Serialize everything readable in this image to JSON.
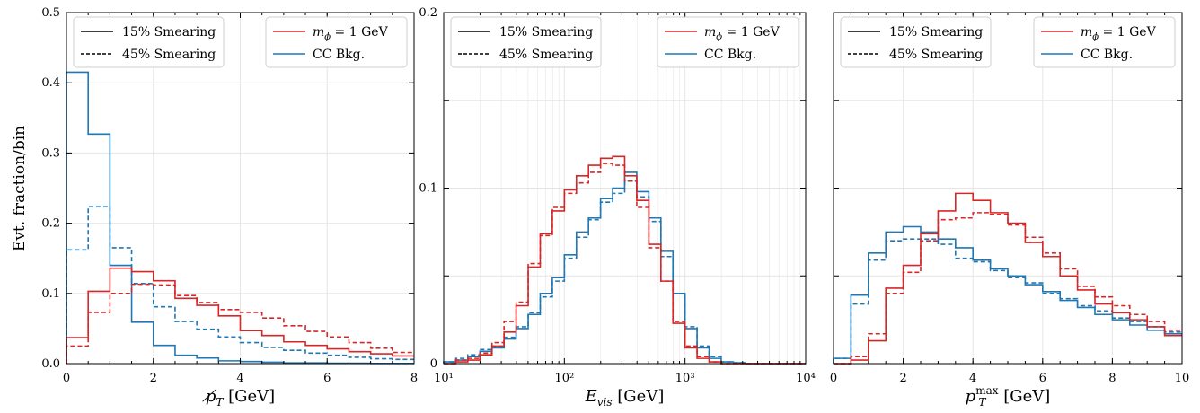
{
  "colors": {
    "signal": "#d62728",
    "background": "#1f77b4",
    "grid": "#e6e6e6",
    "axis": "#000000"
  },
  "ylabel": "Evt. fraction/bin",
  "legend": {
    "smear_15": "15% Smearing",
    "smear_45": "45% Smearing",
    "signal_prefix": "m",
    "signal_sub": "ϕ",
    "signal_suffix": " = 1 GeV",
    "background": "CC Bkg."
  },
  "chart_data": [
    {
      "type": "line",
      "step": true,
      "xlabel_main": "p̸",
      "xlabel_sub": "T",
      "xlabel_sup": "",
      "xlabel_unit": " [GeV]",
      "xscale": "linear",
      "xlim": [
        0,
        8
      ],
      "ylim": [
        0,
        0.5
      ],
      "xticks": [
        0,
        2,
        4,
        6,
        8
      ],
      "xtick_labels": [
        "0",
        "2",
        "4",
        "6",
        "8"
      ],
      "yticks": [
        0,
        0.1,
        0.2,
        0.3,
        0.4,
        0.5
      ],
      "ytick_labels": [
        "0.0",
        "0.1",
        "0.2",
        "0.3",
        "0.4",
        "0.5"
      ],
      "show_yticklabels": true,
      "grid": true,
      "legend_placement": "top",
      "bin_edges": [
        0,
        0.5,
        1,
        1.5,
        2,
        2.5,
        3,
        3.5,
        4,
        4.5,
        5,
        5.5,
        6,
        6.5,
        7,
        7.5,
        8
      ],
      "series": [
        {
          "name": "CC Bkg. 15% Smearing",
          "color": "background",
          "dash": false,
          "values": [
            0.415,
            0.327,
            0.14,
            0.059,
            0.026,
            0.012,
            0.008,
            0.004,
            0.003,
            0.002,
            0.001,
            0.001,
            0.0005,
            0.0005,
            0.0003,
            0.0003
          ]
        },
        {
          "name": "CC Bkg. 45% Smearing",
          "color": "background",
          "dash": true,
          "values": [
            0.162,
            0.224,
            0.165,
            0.114,
            0.081,
            0.06,
            0.049,
            0.038,
            0.03,
            0.023,
            0.019,
            0.015,
            0.012,
            0.009,
            0.007,
            0.006
          ]
        },
        {
          "name": "m_phi = 1 GeV 15% Smearing",
          "color": "signal",
          "dash": false,
          "values": [
            0.037,
            0.103,
            0.136,
            0.131,
            0.118,
            0.093,
            0.083,
            0.068,
            0.047,
            0.04,
            0.031,
            0.026,
            0.021,
            0.017,
            0.014,
            0.011
          ]
        },
        {
          "name": "m_phi = 1 GeV 45% Smearing",
          "color": "signal",
          "dash": true,
          "values": [
            0.025,
            0.073,
            0.1,
            0.113,
            0.112,
            0.097,
            0.087,
            0.077,
            0.073,
            0.065,
            0.054,
            0.046,
            0.038,
            0.03,
            0.022,
            0.016
          ]
        }
      ]
    },
    {
      "type": "line",
      "step": true,
      "xlabel_main": "E",
      "xlabel_sub": "vis",
      "xlabel_sup": "",
      "xlabel_unit": " [GeV]",
      "xscale": "log",
      "xlim": [
        10,
        10000
      ],
      "ylim": [
        0,
        0.2
      ],
      "xticks": [
        10,
        100,
        1000,
        10000
      ],
      "xtick_labels": [
        "10¹",
        "10²",
        "10³",
        "10⁴"
      ],
      "yticks": [
        0,
        0.1,
        0.2
      ],
      "ytick_labels": [
        "0",
        "0.1",
        "0.2"
      ],
      "extra_yticks": [
        0.05,
        0.15
      ],
      "show_yticklabels": true,
      "grid": true,
      "legend_placement": "top",
      "bin_edges": [
        10,
        12.59,
        15.85,
        19.95,
        25.12,
        31.62,
        39.81,
        50.12,
        63.1,
        79.43,
        100,
        125.9,
        158.5,
        199.5,
        251.2,
        316.2,
        398.1,
        501.2,
        631,
        794.3,
        1000,
        1259,
        1585,
        1995,
        2512,
        3162,
        3981,
        5012,
        6310,
        7943,
        10000
      ],
      "series": [
        {
          "name": "CC Bkg. 15% Smearing",
          "color": "background",
          "dash": false,
          "values": [
            0.001,
            0.002,
            0.004,
            0.007,
            0.009,
            0.014,
            0.02,
            0.028,
            0.04,
            0.049,
            0.062,
            0.075,
            0.083,
            0.094,
            0.1,
            0.109,
            0.098,
            0.083,
            0.064,
            0.04,
            0.02,
            0.009,
            0.003,
            0.001,
            0.0005,
            0,
            0,
            0,
            0,
            0
          ]
        },
        {
          "name": "CC Bkg. 45% Smearing",
          "color": "background",
          "dash": true,
          "values": [
            0.001,
            0.003,
            0.005,
            0.008,
            0.01,
            0.015,
            0.021,
            0.029,
            0.038,
            0.047,
            0.06,
            0.072,
            0.082,
            0.092,
            0.097,
            0.104,
            0.095,
            0.081,
            0.061,
            0.04,
            0.021,
            0.01,
            0.004,
            0.001,
            0.0005,
            0,
            0,
            0,
            0,
            0
          ]
        },
        {
          "name": "m_phi = 1 GeV 15% Smearing",
          "color": "signal",
          "dash": false,
          "values": [
            0,
            0.001,
            0.002,
            0.005,
            0.01,
            0.018,
            0.033,
            0.055,
            0.074,
            0.087,
            0.099,
            0.107,
            0.113,
            0.117,
            0.118,
            0.107,
            0.093,
            0.068,
            0.047,
            0.023,
            0.009,
            0.003,
            0.001,
            0,
            0,
            0,
            0,
            0,
            0,
            0
          ]
        },
        {
          "name": "m_phi = 1 GeV 45% Smearing",
          "color": "signal",
          "dash": true,
          "values": [
            0,
            0.002,
            0.003,
            0.006,
            0.012,
            0.024,
            0.035,
            0.057,
            0.073,
            0.089,
            0.097,
            0.103,
            0.109,
            0.114,
            0.113,
            0.104,
            0.089,
            0.066,
            0.047,
            0.024,
            0.01,
            0.004,
            0.001,
            0,
            0,
            0,
            0,
            0,
            0,
            0
          ]
        }
      ]
    },
    {
      "type": "line",
      "step": true,
      "xlabel_main": "p",
      "xlabel_sub": "T",
      "xlabel_sup": "max",
      "xlabel_unit": " [GeV]",
      "xscale": "linear",
      "xlim": [
        0,
        10
      ],
      "ylim": [
        0,
        0.2
      ],
      "xticks": [
        0,
        2,
        4,
        6,
        8,
        10
      ],
      "xtick_labels": [
        "0",
        "2",
        "4",
        "6",
        "8",
        "10"
      ],
      "yticks": [
        0,
        0.05,
        0.1,
        0.15,
        0.2
      ],
      "ytick_labels": [
        "",
        "",
        "",
        "",
        ""
      ],
      "show_yticklabels": false,
      "grid": true,
      "legend_placement": "top",
      "bin_edges": [
        0,
        0.5,
        1,
        1.5,
        2,
        2.5,
        3,
        3.5,
        4,
        4.5,
        5,
        5.5,
        6,
        6.5,
        7,
        7.5,
        8,
        8.5,
        9,
        9.5,
        10
      ],
      "series": [
        {
          "name": "CC Bkg. 15% Smearing",
          "color": "background",
          "dash": false,
          "values": [
            0.003,
            0.039,
            0.063,
            0.075,
            0.078,
            0.075,
            0.071,
            0.066,
            0.059,
            0.054,
            0.05,
            0.045,
            0.041,
            0.036,
            0.032,
            0.028,
            0.025,
            0.022,
            0.019,
            0.017
          ]
        },
        {
          "name": "CC Bkg. 45% Smearing",
          "color": "background",
          "dash": true,
          "values": [
            0.003,
            0.034,
            0.059,
            0.07,
            0.071,
            0.071,
            0.068,
            0.06,
            0.058,
            0.053,
            0.049,
            0.046,
            0.04,
            0.037,
            0.033,
            0.03,
            0.026,
            0.024,
            0.021,
            0.018
          ]
        },
        {
          "name": "m_phi = 1 GeV 15% Smearing",
          "color": "signal",
          "dash": false,
          "values": [
            0,
            0.002,
            0.013,
            0.043,
            0.056,
            0.074,
            0.087,
            0.097,
            0.093,
            0.086,
            0.08,
            0.069,
            0.061,
            0.05,
            0.042,
            0.034,
            0.029,
            0.025,
            0.021,
            0.016
          ]
        },
        {
          "name": "m_phi = 1 GeV 45% Smearing",
          "color": "signal",
          "dash": true,
          "values": [
            0,
            0.004,
            0.017,
            0.04,
            0.052,
            0.07,
            0.082,
            0.083,
            0.086,
            0.085,
            0.079,
            0.072,
            0.063,
            0.054,
            0.044,
            0.038,
            0.033,
            0.028,
            0.024,
            0.019
          ]
        }
      ]
    }
  ]
}
